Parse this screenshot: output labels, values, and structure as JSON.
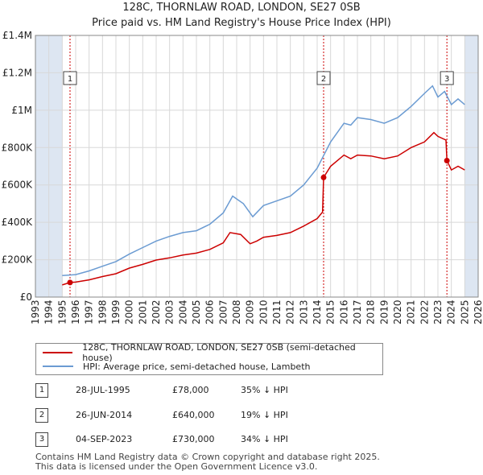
{
  "title_line1": "128C, THORNLAW ROAD, LONDON, SE27 0SB",
  "title_line2": "Price paid vs. HM Land Registry's House Price Index (HPI)",
  "colors": {
    "red": "#cc0000",
    "blue": "#6b9bd2",
    "shade": "#dde6f2",
    "grid": "#d8d8d8"
  },
  "chart_data": {
    "type": "line",
    "xlim": [
      1993,
      2026
    ],
    "ylim": [
      0,
      1400000
    ],
    "x_ticks": [
      1993,
      1994,
      1995,
      1996,
      1997,
      1998,
      1999,
      2000,
      2001,
      2002,
      2003,
      2004,
      2005,
      2006,
      2007,
      2008,
      2009,
      2010,
      2011,
      2012,
      2013,
      2014,
      2015,
      2016,
      2017,
      2018,
      2019,
      2020,
      2021,
      2022,
      2023,
      2024,
      2025,
      2026
    ],
    "y_ticks": [
      {
        "value": 0,
        "label": "£0"
      },
      {
        "value": 200000,
        "label": "£200K"
      },
      {
        "value": 400000,
        "label": "£400K"
      },
      {
        "value": 600000,
        "label": "£600K"
      },
      {
        "value": 800000,
        "label": "£800K"
      },
      {
        "value": 1000000,
        "label": "£1M"
      },
      {
        "value": 1200000,
        "label": "£1.2M"
      },
      {
        "value": 1400000,
        "label": "£1.4M"
      }
    ],
    "shaded_before": 1995.0,
    "shaded_after": 2025.0,
    "series": [
      {
        "name": "128C, THORNLAW ROAD, LONDON, SE27 0SB (semi-detached house)",
        "color": "#cc0000",
        "points": [
          [
            1995.0,
            65000
          ],
          [
            1995.58,
            78000
          ],
          [
            1996.0,
            80000
          ],
          [
            1997.0,
            92000
          ],
          [
            1998.0,
            110000
          ],
          [
            1999.0,
            125000
          ],
          [
            2000.0,
            155000
          ],
          [
            2001.0,
            175000
          ],
          [
            2002.0,
            198000
          ],
          [
            2003.0,
            210000
          ],
          [
            2004.0,
            225000
          ],
          [
            2005.0,
            235000
          ],
          [
            2006.0,
            255000
          ],
          [
            2007.0,
            290000
          ],
          [
            2007.5,
            345000
          ],
          [
            2008.3,
            335000
          ],
          [
            2009.0,
            285000
          ],
          [
            2009.5,
            300000
          ],
          [
            2010.0,
            320000
          ],
          [
            2011.0,
            330000
          ],
          [
            2012.0,
            345000
          ],
          [
            2013.0,
            380000
          ],
          [
            2014.0,
            420000
          ],
          [
            2014.4,
            455000
          ],
          [
            2014.48,
            640000
          ],
          [
            2015.0,
            700000
          ],
          [
            2016.0,
            760000
          ],
          [
            2016.5,
            740000
          ],
          [
            2017.0,
            760000
          ],
          [
            2018.0,
            755000
          ],
          [
            2019.0,
            740000
          ],
          [
            2020.0,
            755000
          ],
          [
            2021.0,
            800000
          ],
          [
            2022.0,
            830000
          ],
          [
            2022.7,
            880000
          ],
          [
            2023.0,
            860000
          ],
          [
            2023.6,
            840000
          ],
          [
            2023.67,
            730000
          ],
          [
            2024.0,
            680000
          ],
          [
            2024.5,
            700000
          ],
          [
            2025.0,
            680000
          ]
        ]
      },
      {
        "name": "HPI: Average price, semi-detached house, Lambeth",
        "color": "#6b9bd2",
        "points": [
          [
            1995.0,
            115000
          ],
          [
            1996.0,
            120000
          ],
          [
            1997.0,
            140000
          ],
          [
            1998.0,
            165000
          ],
          [
            1999.0,
            190000
          ],
          [
            2000.0,
            230000
          ],
          [
            2001.0,
            265000
          ],
          [
            2002.0,
            300000
          ],
          [
            2003.0,
            325000
          ],
          [
            2004.0,
            345000
          ],
          [
            2005.0,
            355000
          ],
          [
            2006.0,
            390000
          ],
          [
            2007.0,
            450000
          ],
          [
            2007.7,
            540000
          ],
          [
            2008.5,
            500000
          ],
          [
            2009.2,
            430000
          ],
          [
            2010.0,
            490000
          ],
          [
            2011.0,
            515000
          ],
          [
            2012.0,
            540000
          ],
          [
            2013.0,
            600000
          ],
          [
            2014.0,
            690000
          ],
          [
            2015.0,
            830000
          ],
          [
            2016.0,
            930000
          ],
          [
            2016.5,
            920000
          ],
          [
            2017.0,
            960000
          ],
          [
            2018.0,
            950000
          ],
          [
            2019.0,
            930000
          ],
          [
            2020.0,
            960000
          ],
          [
            2021.0,
            1020000
          ],
          [
            2022.0,
            1090000
          ],
          [
            2022.6,
            1130000
          ],
          [
            2023.0,
            1070000
          ],
          [
            2023.5,
            1100000
          ],
          [
            2024.0,
            1030000
          ],
          [
            2024.5,
            1060000
          ],
          [
            2025.0,
            1030000
          ]
        ]
      }
    ],
    "sales": [
      {
        "num": "1",
        "x": 1995.58,
        "price": 78000
      },
      {
        "num": "2",
        "x": 2014.48,
        "price": 640000
      },
      {
        "num": "3",
        "x": 2023.67,
        "price": 730000
      }
    ]
  },
  "legend": {
    "red_label": "128C, THORNLAW ROAD, LONDON, SE27 0SB (semi-detached house)",
    "blue_label": "HPI: Average price, semi-detached house, Lambeth"
  },
  "table": [
    {
      "num": "1",
      "date": "28-JUL-1995",
      "price": "£78,000",
      "hpi": "35% ↓ HPI"
    },
    {
      "num": "2",
      "date": "26-JUN-2014",
      "price": "£640,000",
      "hpi": "19% ↓ HPI"
    },
    {
      "num": "3",
      "date": "04-SEP-2023",
      "price": "£730,000",
      "hpi": "34% ↓ HPI"
    }
  ],
  "footer_line1": "Contains HM Land Registry data © Crown copyright and database right 2025.",
  "footer_line2": "This data is licensed under the Open Government Licence v3.0."
}
